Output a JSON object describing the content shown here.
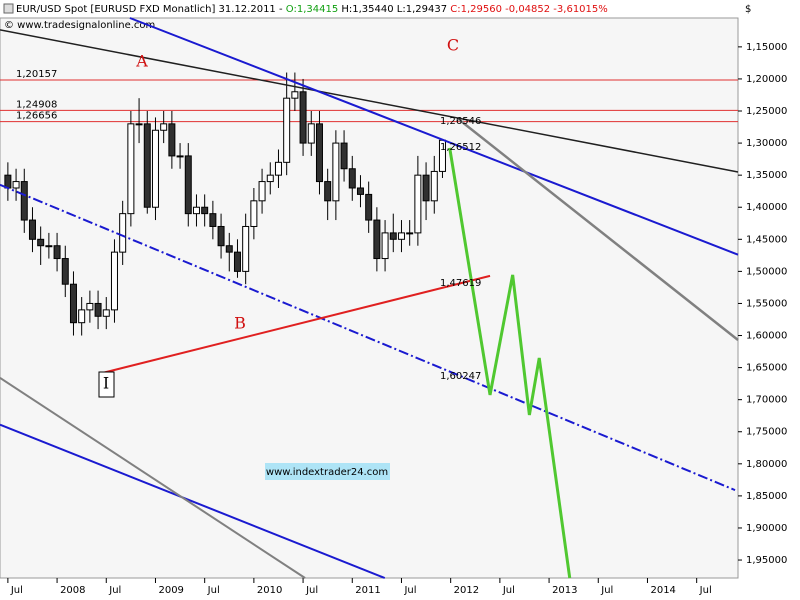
{
  "chart_data": {
    "type": "candlestick",
    "title_parts": [
      "EUR/USD Spot [EURUSD FXD  Monatlich] 31.12.2011 -",
      "O:1,34415",
      "H:1,35440 L:1,29437",
      "C:1,29560 -0,04852 -3,61015%"
    ],
    "copyright": "© www.tradesignalonline.com",
    "currency": "$",
    "watermark": "www.indextrader24.com",
    "annotations": [
      "A",
      "B",
      "C",
      "I"
    ],
    "inverted": true,
    "ylim": [
      1.105,
      1.978
    ],
    "yticks": [
      {
        "value": 1.15,
        "label": "1,15000"
      },
      {
        "value": 1.2,
        "label": "1,20000"
      },
      {
        "value": 1.25,
        "label": "1,25000"
      },
      {
        "value": 1.3,
        "label": "1,30000"
      },
      {
        "value": 1.35,
        "label": "1,35000"
      },
      {
        "value": 1.4,
        "label": "1,40000"
      },
      {
        "value": 1.45,
        "label": "1,45000"
      },
      {
        "value": 1.5,
        "label": "1,50000"
      },
      {
        "value": 1.55,
        "label": "1,55000"
      },
      {
        "value": 1.6,
        "label": "1,60000"
      },
      {
        "value": 1.65,
        "label": "1,65000"
      },
      {
        "value": 1.7,
        "label": "1,70000"
      },
      {
        "value": 1.75,
        "label": "1,75000"
      },
      {
        "value": 1.8,
        "label": "1,80000"
      },
      {
        "value": 1.85,
        "label": "1,85000"
      },
      {
        "value": 1.9,
        "label": "1,90000"
      },
      {
        "value": 1.95,
        "label": "1,95000"
      }
    ],
    "xlim": [
      2007.42,
      2014.92
    ],
    "xticks": [
      {
        "value": 2007.5,
        "label": "Jul"
      },
      {
        "value": 2008,
        "label": "2008"
      },
      {
        "value": 2008.5,
        "label": "Jul"
      },
      {
        "value": 2009,
        "label": "2009"
      },
      {
        "value": 2009.5,
        "label": "Jul"
      },
      {
        "value": 2010,
        "label": "2010"
      },
      {
        "value": 2010.5,
        "label": "Jul"
      },
      {
        "value": 2011,
        "label": "2011"
      },
      {
        "value": 2011.5,
        "label": "Jul"
      },
      {
        "value": 2012,
        "label": "2012"
      },
      {
        "value": 2012.5,
        "label": "Jul"
      },
      {
        "value": 2013,
        "label": "2013"
      },
      {
        "value": 2013.5,
        "label": "Jul"
      },
      {
        "value": 2014,
        "label": "2014"
      },
      {
        "value": 2014.5,
        "label": "Jul"
      }
    ],
    "x": [
      "2007-07",
      "2007-08",
      "2007-09",
      "2007-10",
      "2007-11",
      "2007-12",
      "2008-01",
      "2008-02",
      "2008-03",
      "2008-04",
      "2008-05",
      "2008-06",
      "2008-07",
      "2008-08",
      "2008-09",
      "2008-10",
      "2008-11",
      "2008-12",
      "2009-01",
      "2009-02",
      "2009-03",
      "2009-04",
      "2009-05",
      "2009-06",
      "2009-07",
      "2009-08",
      "2009-09",
      "2009-10",
      "2009-11",
      "2009-12",
      "2010-01",
      "2010-02",
      "2010-03",
      "2010-04",
      "2010-05",
      "2010-06",
      "2010-07",
      "2010-08",
      "2010-09",
      "2010-10",
      "2010-11",
      "2010-12",
      "2011-01",
      "2011-02",
      "2011-03",
      "2011-04",
      "2011-05",
      "2011-06",
      "2011-07",
      "2011-08",
      "2011-09",
      "2011-10",
      "2011-11",
      "2011-12"
    ],
    "open": [
      1.35,
      1.37,
      1.36,
      1.42,
      1.45,
      1.46,
      1.46,
      1.48,
      1.52,
      1.58,
      1.56,
      1.55,
      1.57,
      1.56,
      1.47,
      1.41,
      1.27,
      1.27,
      1.4,
      1.28,
      1.27,
      1.32,
      1.32,
      1.41,
      1.4,
      1.41,
      1.43,
      1.46,
      1.47,
      1.5,
      1.43,
      1.39,
      1.36,
      1.35,
      1.33,
      1.23,
      1.22,
      1.3,
      1.27,
      1.36,
      1.39,
      1.3,
      1.34,
      1.37,
      1.38,
      1.42,
      1.48,
      1.44,
      1.45,
      1.44,
      1.44,
      1.35,
      1.39,
      1.34415
    ],
    "high": [
      1.39,
      1.39,
      1.44,
      1.47,
      1.49,
      1.48,
      1.5,
      1.54,
      1.6,
      1.6,
      1.58,
      1.59,
      1.59,
      1.58,
      1.49,
      1.43,
      1.3,
      1.41,
      1.42,
      1.3,
      1.34,
      1.34,
      1.43,
      1.43,
      1.43,
      1.45,
      1.48,
      1.5,
      1.51,
      1.52,
      1.45,
      1.41,
      1.38,
      1.37,
      1.35,
      1.25,
      1.32,
      1.32,
      1.38,
      1.42,
      1.42,
      1.36,
      1.39,
      1.4,
      1.44,
      1.5,
      1.5,
      1.47,
      1.47,
      1.46,
      1.46,
      1.42,
      1.41,
      1.3544
    ],
    "low": [
      1.33,
      1.34,
      1.34,
      1.4,
      1.43,
      1.44,
      1.44,
      1.46,
      1.5,
      1.54,
      1.53,
      1.53,
      1.54,
      1.45,
      1.39,
      1.25,
      1.23,
      1.25,
      1.26,
      1.25,
      1.25,
      1.3,
      1.3,
      1.38,
      1.38,
      1.39,
      1.41,
      1.44,
      1.45,
      1.41,
      1.37,
      1.34,
      1.33,
      1.31,
      1.19,
      1.19,
      1.2,
      1.25,
      1.25,
      1.34,
      1.28,
      1.28,
      1.32,
      1.35,
      1.36,
      1.4,
      1.42,
      1.41,
      1.42,
      1.42,
      1.32,
      1.33,
      1.32,
      1.29437
    ],
    "close": [
      1.37,
      1.36,
      1.42,
      1.45,
      1.46,
      1.46,
      1.48,
      1.52,
      1.58,
      1.56,
      1.55,
      1.57,
      1.56,
      1.47,
      1.41,
      1.27,
      1.27,
      1.4,
      1.28,
      1.27,
      1.32,
      1.32,
      1.41,
      1.4,
      1.41,
      1.43,
      1.46,
      1.47,
      1.5,
      1.43,
      1.39,
      1.36,
      1.35,
      1.33,
      1.23,
      1.22,
      1.3,
      1.27,
      1.36,
      1.39,
      1.3,
      1.34,
      1.37,
      1.38,
      1.42,
      1.48,
      1.44,
      1.45,
      1.44,
      1.44,
      1.35,
      1.39,
      1.3442,
      1.2956
    ],
    "levels": [
      {
        "value": 1.20157,
        "label": "1,20157"
      },
      {
        "value": 1.24908,
        "label": "1,24908"
      },
      {
        "value": 1.26656,
        "label": "1,26656"
      }
    ],
    "level_color": "#e03030",
    "price_labels": [
      {
        "value": 1.26546,
        "label": "1,26546"
      },
      {
        "value": 1.26512,
        "label": "1,26512"
      },
      {
        "value": 1.47619,
        "label": "1,47619"
      },
      {
        "value": 1.60247,
        "label": "1,60247"
      }
    ],
    "lines": [
      {
        "color": "#202020",
        "width": 1.5,
        "points": [
          [
            2007.42,
            1.1235
          ],
          [
            2014.92,
            1.345
          ]
        ]
      },
      {
        "color": "#1a1ad0",
        "width": 2,
        "points": [
          [
            2008.74,
            1.105
          ],
          [
            2014.92,
            1.474
          ]
        ]
      },
      {
        "color": "#1a1ad0",
        "width": 2,
        "points": [
          [
            2007.42,
            1.739
          ],
          [
            2011.33,
            1.978
          ]
        ]
      },
      {
        "color": "#808080",
        "width": 2,
        "points": [
          [
            2007.42,
            1.666
          ],
          [
            2010.52,
            1.978
          ]
        ]
      },
      {
        "color": "#808080",
        "width": 2.5,
        "points": [
          [
            2012.09,
            1.264
          ],
          [
            2014.92,
            1.607
          ]
        ]
      },
      {
        "color": "#1a1ad0",
        "width": 2,
        "dash": true,
        "points": [
          [
            2007.42,
            1.365
          ],
          [
            2014.89,
            1.841
          ]
        ]
      },
      {
        "color": "#e02020",
        "width": 2,
        "points": [
          [
            2008.47,
            1.658
          ],
          [
            2012.4,
            1.507
          ]
        ]
      },
      {
        "color": "#50c830",
        "width": 3,
        "points": [
          [
            2011.99,
            1.3075
          ],
          [
            2012.4,
            1.6926
          ],
          [
            2012.63,
            1.5055
          ],
          [
            2012.8,
            1.7238
          ],
          [
            2012.9,
            1.635
          ],
          [
            2013.21,
            1.978
          ]
        ]
      }
    ]
  }
}
